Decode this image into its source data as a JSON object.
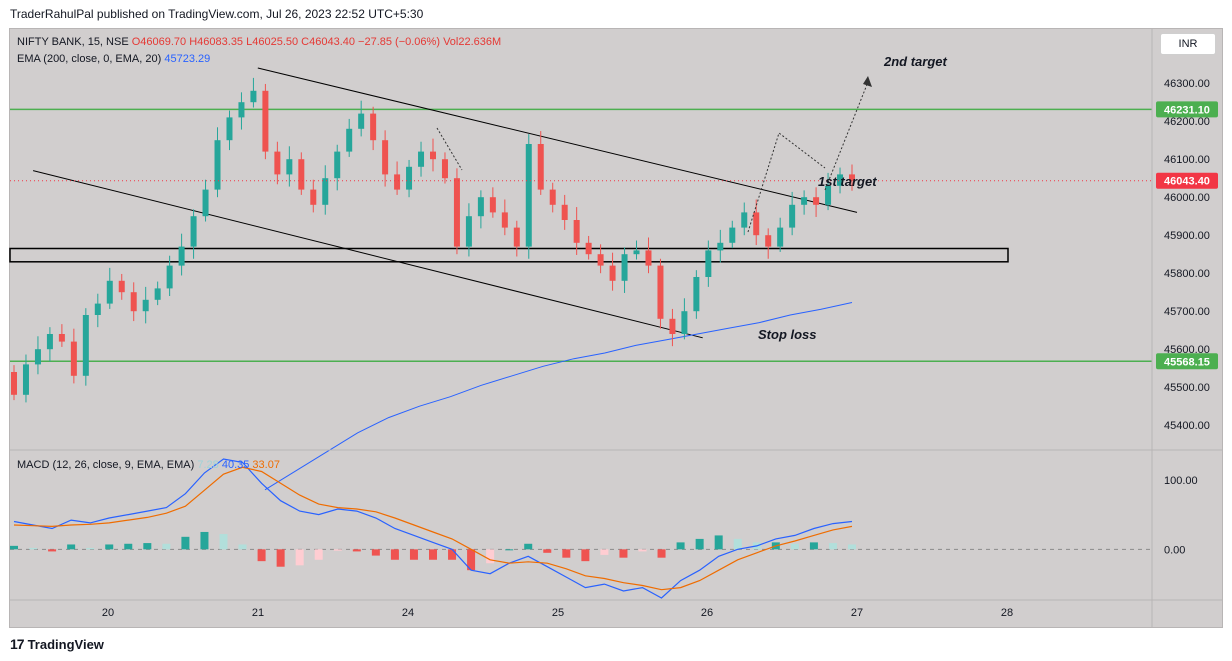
{
  "header": {
    "text": "TraderRahulPal published on TradingView.com, Jul 26, 2023 22:52 UTC+5:30"
  },
  "footer": {
    "logo_mark": "17",
    "brand": "TradingView"
  },
  "currency_button": "INR",
  "legend": {
    "symbol": "NIFTY BANK, 15, NSE",
    "ohlc": "O46069.70  H46083.35  L46025.50  C46043.40  −27.85 (−0.06%)",
    "volume": "Vol22.636M",
    "ema_label": "EMA (200, close, 0, EMA, 20)",
    "ema_value": "45723.29",
    "macd_label": "MACD (12, 26, close, 9, EMA, EMA)",
    "macd_hist": "7.28",
    "macd_line": "40.35",
    "macd_signal": "33.07"
  },
  "annotations": {
    "second_target": "2nd target",
    "first_target": "1st target",
    "stop_loss": "Stop loss"
  },
  "colors": {
    "background": "#d1cece",
    "up": "#26a69a",
    "down": "#ef5350",
    "ema": "#2962ff",
    "level_line": "#4caf50",
    "level_label_bg": "#4caf50",
    "last_price_bg": "#f23645",
    "macd_line": "#2962ff",
    "signal_line": "#ef6c00",
    "hist_up_strong": "#26a69a",
    "hist_up_weak": "#b2dfdb",
    "hist_down_strong": "#ef5350",
    "hist_down_weak": "#ffcdd2"
  },
  "chart_data": [
    {
      "type": "candlestick",
      "title": "NIFTY BANK, 15, NSE",
      "xlabel": "",
      "ylabel": "",
      "x_ticks": [
        "20",
        "21",
        "24",
        "25",
        "26",
        "27",
        "28"
      ],
      "y_ticks": [
        45400,
        45500,
        45600,
        45700,
        45800,
        45900,
        46000,
        46100,
        46200,
        46300
      ],
      "ylim": [
        45340,
        46440
      ],
      "levels": [
        {
          "label": "46231.10",
          "value": 46231.1
        },
        {
          "label": "45568.15",
          "value": 45568.15
        }
      ],
      "last_price": {
        "label": "46043.40",
        "value": 46043.4
      },
      "zone": {
        "from": 45830,
        "to": 45865
      },
      "trendlines": [
        {
          "from": [
            21,
            46340
          ],
          "to": [
            27,
            45960
          ]
        },
        {
          "from": [
            19.5,
            46070
          ],
          "to": [
            25.97,
            45630
          ]
        }
      ],
      "ema_200": [
        45230,
        45280,
        45330,
        45380,
        45420,
        45450,
        45475,
        45505,
        45530,
        45555,
        45575,
        45590,
        45610,
        45625,
        45640,
        45655,
        45670,
        45690,
        45705,
        45723
      ],
      "candles_close": [
        45480,
        45560,
        45600,
        45640,
        45620,
        45530,
        45690,
        45720,
        45780,
        45750,
        45700,
        45730,
        45760,
        45820,
        45870,
        45950,
        46020,
        46150,
        46210,
        46250,
        46280,
        46120,
        46060,
        46100,
        46020,
        45980,
        46050,
        46120,
        46180,
        46220,
        46150,
        46060,
        46020,
        46080,
        46120,
        46100,
        46050,
        45870,
        45950,
        46000,
        45960,
        45920,
        45870,
        46140,
        46020,
        45980,
        45940,
        45880,
        45850,
        45820,
        45780,
        45850,
        45860,
        45820,
        45680,
        45640,
        45700,
        45790,
        45860,
        45880,
        45920,
        45960,
        45900,
        45870,
        45920,
        45980,
        46000,
        45980,
        46030,
        46060,
        46043
      ]
    },
    {
      "type": "line",
      "title": "MACD (12, 26, close, 9, EMA, EMA)",
      "xlabel": "",
      "ylabel": "",
      "y_ticks": [
        0,
        100
      ],
      "ylim": [
        -70,
        140
      ],
      "series": [
        {
          "name": "MACD",
          "values": [
            40,
            35,
            30,
            42,
            38,
            45,
            50,
            55,
            60,
            80,
            110,
            130,
            125,
            95,
            70,
            55,
            50,
            58,
            55,
            45,
            30,
            20,
            10,
            0,
            -30,
            -35,
            -20,
            -10,
            -25,
            -40,
            -55,
            -50,
            -60,
            -55,
            -70,
            -45,
            -30,
            -10,
            0,
            5,
            15,
            20,
            30,
            37,
            40
          ]
        },
        {
          "name": "Signal",
          "values": [
            35,
            34,
            33,
            35,
            36,
            38,
            42,
            46,
            52,
            62,
            85,
            108,
            118,
            112,
            95,
            78,
            65,
            60,
            58,
            54,
            45,
            35,
            25,
            15,
            0,
            -15,
            -20,
            -18,
            -20,
            -28,
            -38,
            -42,
            -48,
            -52,
            -58,
            -55,
            -45,
            -30,
            -15,
            -5,
            5,
            12,
            20,
            28,
            33
          ]
        }
      ],
      "histogram": [
        5,
        2,
        -3,
        7,
        2,
        7,
        8,
        9,
        8,
        18,
        25,
        22,
        7,
        -17,
        -25,
        -23,
        -15,
        -2,
        -3,
        -9,
        -15,
        -15,
        -15,
        -15,
        -30,
        -20,
        0,
        8,
        -5,
        -12,
        -17,
        -8,
        -12,
        -3,
        -12,
        10,
        15,
        20,
        15,
        10,
        10,
        8,
        10,
        9,
        7
      ]
    }
  ]
}
